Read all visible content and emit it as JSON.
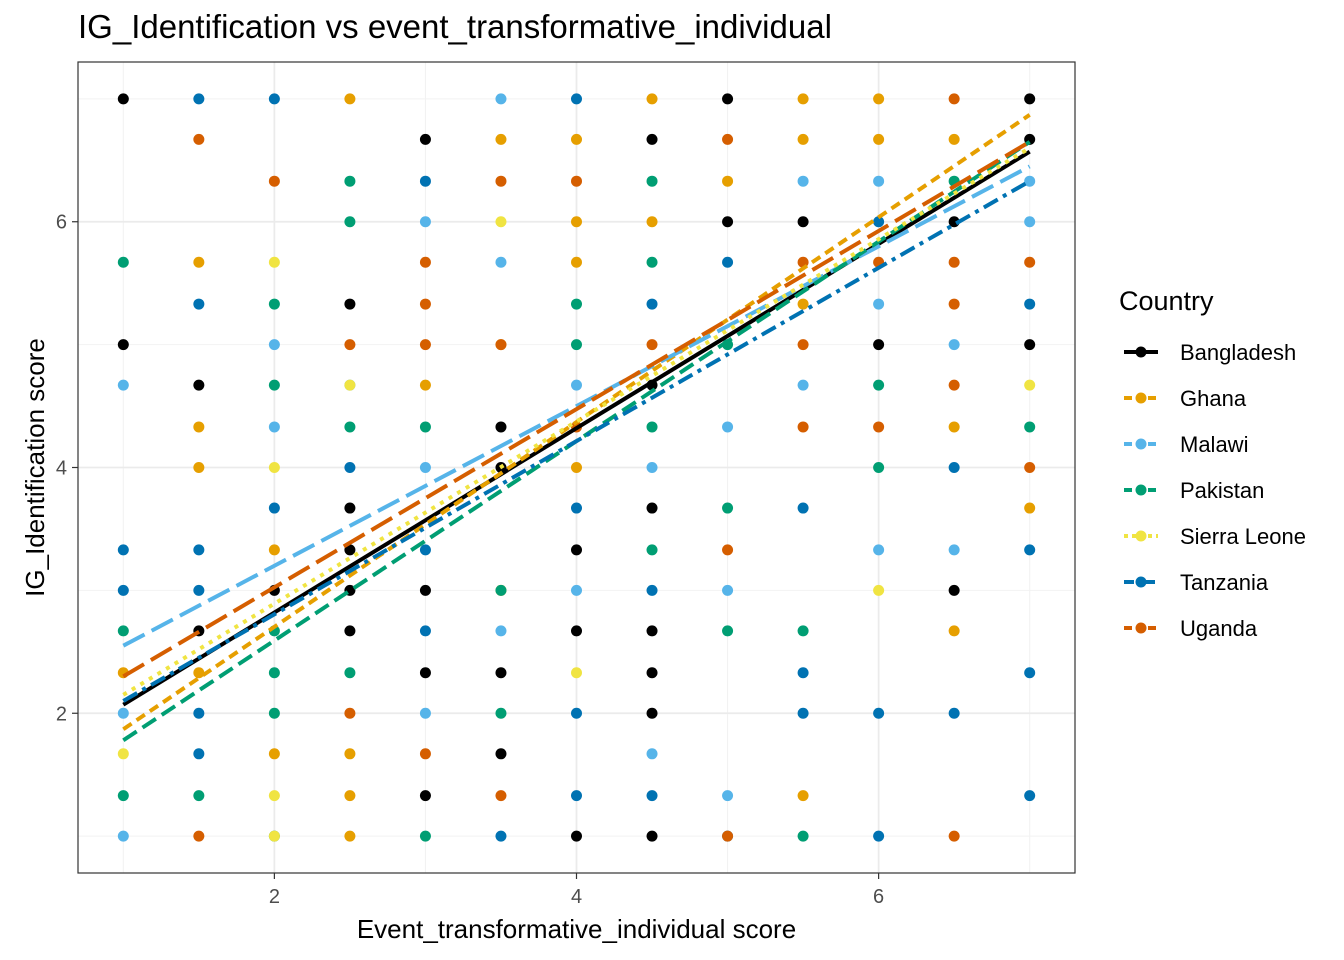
{
  "chart_data": {
    "type": "scatter",
    "title": "IG_Identification vs event_transformative_individual",
    "xlabel": "Event_transformative_individual score",
    "ylabel": "IG_Identification score",
    "xlim": [
      0.7,
      7.3
    ],
    "ylim": [
      0.7,
      7.3
    ],
    "x_ticks": [
      2,
      4,
      6
    ],
    "y_ticks": [
      2,
      4,
      6
    ],
    "grid": true,
    "legend": {
      "title": "Country",
      "placement": "right"
    },
    "series": [
      {
        "name": "Bangladesh",
        "color": "#000000",
        "line_style": "solid",
        "fit": {
          "x": [
            1,
            7
          ],
          "y": [
            2.07,
            6.57
          ]
        },
        "points": [
          [
            1,
            7
          ],
          [
            1,
            5
          ],
          [
            1.5,
            4.67
          ],
          [
            1.5,
            2.67
          ],
          [
            2,
            3
          ],
          [
            2.5,
            5.33
          ],
          [
            2.5,
            3.67
          ],
          [
            2.5,
            3.33
          ],
          [
            2.5,
            3
          ],
          [
            2.5,
            2.67
          ],
          [
            3,
            6.67
          ],
          [
            3,
            3
          ],
          [
            3,
            2.33
          ],
          [
            3,
            1.33
          ],
          [
            3.5,
            4.33
          ],
          [
            3.5,
            4
          ],
          [
            3.5,
            2.33
          ],
          [
            3.5,
            1.67
          ],
          [
            4,
            3.33
          ],
          [
            4,
            2.67
          ],
          [
            4,
            1
          ],
          [
            4.5,
            6.67
          ],
          [
            4.5,
            4.67
          ],
          [
            4.5,
            3.67
          ],
          [
            4.5,
            2.67
          ],
          [
            4.5,
            2.33
          ],
          [
            4.5,
            2
          ],
          [
            4.5,
            1
          ],
          [
            5,
            7
          ],
          [
            5,
            6
          ],
          [
            5.5,
            6
          ],
          [
            6,
            5
          ],
          [
            6.5,
            6
          ],
          [
            6.5,
            3
          ],
          [
            7,
            7
          ],
          [
            7,
            6.67
          ],
          [
            7,
            5
          ]
        ]
      },
      {
        "name": "Ghana",
        "color": "#E69F00",
        "line_style": "dashed-short",
        "fit": {
          "x": [
            1,
            7
          ],
          "y": [
            1.87,
            6.87
          ]
        },
        "points": [
          [
            1,
            2.33
          ],
          [
            1.5,
            5.67
          ],
          [
            1.5,
            4.33
          ],
          [
            1.5,
            4
          ],
          [
            1.5,
            2.33
          ],
          [
            2,
            3.33
          ],
          [
            2,
            1.67
          ],
          [
            2.5,
            7
          ],
          [
            2.5,
            1.67
          ],
          [
            2.5,
            1.33
          ],
          [
            2.5,
            1
          ],
          [
            3,
            4.67
          ],
          [
            3.5,
            6.67
          ],
          [
            3.5,
            5
          ],
          [
            3.5,
            3
          ],
          [
            4,
            6.67
          ],
          [
            4,
            6
          ],
          [
            4,
            5.67
          ],
          [
            4,
            4
          ],
          [
            4.5,
            7
          ],
          [
            4.5,
            6
          ],
          [
            5,
            6.33
          ],
          [
            5.5,
            7
          ],
          [
            5.5,
            6.67
          ],
          [
            5.5,
            5.33
          ],
          [
            5.5,
            1.33
          ],
          [
            6,
            7
          ],
          [
            6,
            6.67
          ],
          [
            6.5,
            6.67
          ],
          [
            6.5,
            4.33
          ],
          [
            6.5,
            2.67
          ],
          [
            7,
            3.67
          ]
        ]
      },
      {
        "name": "Malawi",
        "color": "#56B4E9",
        "line_style": "dashed-long",
        "fit": {
          "x": [
            1,
            7
          ],
          "y": [
            2.55,
            6.45
          ]
        },
        "points": [
          [
            1,
            4.67
          ],
          [
            1,
            2
          ],
          [
            1,
            1
          ],
          [
            2,
            5
          ],
          [
            2,
            4.33
          ],
          [
            2.5,
            4.67
          ],
          [
            3,
            6
          ],
          [
            3,
            4
          ],
          [
            3,
            2
          ],
          [
            3.5,
            7
          ],
          [
            3.5,
            5.67
          ],
          [
            3.5,
            2.67
          ],
          [
            4,
            4.67
          ],
          [
            4,
            3
          ],
          [
            4.5,
            4
          ],
          [
            4.5,
            1.67
          ],
          [
            5,
            4.33
          ],
          [
            5,
            3
          ],
          [
            5,
            1.33
          ],
          [
            5.5,
            6.33
          ],
          [
            5.5,
            4.67
          ],
          [
            6,
            6.33
          ],
          [
            6,
            5.33
          ],
          [
            6,
            3.33
          ],
          [
            6.5,
            5
          ],
          [
            6.5,
            3.33
          ],
          [
            7,
            6.33
          ],
          [
            7,
            6
          ]
        ]
      },
      {
        "name": "Pakistan",
        "color": "#009E73",
        "line_style": "dashed",
        "fit": {
          "x": [
            1,
            7
          ],
          "y": [
            1.78,
            6.65
          ]
        },
        "points": [
          [
            1,
            5.67
          ],
          [
            1,
            2.67
          ],
          [
            1,
            1.33
          ],
          [
            1.5,
            1.33
          ],
          [
            2,
            5.33
          ],
          [
            2,
            4.67
          ],
          [
            2,
            2.67
          ],
          [
            2,
            2.33
          ],
          [
            2,
            2
          ],
          [
            2,
            1
          ],
          [
            2.5,
            6.33
          ],
          [
            2.5,
            6
          ],
          [
            2.5,
            4.33
          ],
          [
            2.5,
            2.33
          ],
          [
            3,
            4.33
          ],
          [
            3,
            1
          ],
          [
            3.5,
            3
          ],
          [
            3.5,
            2
          ],
          [
            4,
            5.33
          ],
          [
            4,
            5
          ],
          [
            4.5,
            6.33
          ],
          [
            4.5,
            5.67
          ],
          [
            4.5,
            4.33
          ],
          [
            4.5,
            3.33
          ],
          [
            5,
            3.67
          ],
          [
            5,
            2.67
          ],
          [
            5,
            5
          ],
          [
            5.5,
            2.67
          ],
          [
            5.5,
            1
          ],
          [
            6,
            4.67
          ],
          [
            6,
            4
          ],
          [
            6.5,
            6.33
          ],
          [
            7,
            4.33
          ]
        ]
      },
      {
        "name": "Sierra Leone",
        "color": "#F0E442",
        "line_style": "dotted",
        "fit": {
          "x": [
            1,
            7
          ],
          "y": [
            2.15,
            6.6
          ]
        },
        "points": [
          [
            1,
            1.67
          ],
          [
            2,
            5.67
          ],
          [
            2,
            4
          ],
          [
            2,
            1.33
          ],
          [
            2,
            1
          ],
          [
            2.5,
            4.67
          ],
          [
            3.5,
            6
          ],
          [
            4,
            2.33
          ],
          [
            6,
            3
          ],
          [
            7,
            4.67
          ]
        ]
      },
      {
        "name": "Tanzania",
        "color": "#0072B2",
        "line_style": "dashdot",
        "fit": {
          "x": [
            1,
            7
          ],
          "y": [
            2.1,
            6.33
          ]
        },
        "points": [
          [
            1,
            3.33
          ],
          [
            1,
            3
          ],
          [
            1.5,
            7
          ],
          [
            1.5,
            5.33
          ],
          [
            1.5,
            3.33
          ],
          [
            1.5,
            3
          ],
          [
            1.5,
            2
          ],
          [
            1.5,
            1.67
          ],
          [
            2,
            7
          ],
          [
            2,
            3.67
          ],
          [
            2.5,
            4
          ],
          [
            3,
            6.33
          ],
          [
            3,
            3.33
          ],
          [
            3,
            2.67
          ],
          [
            3.5,
            1
          ],
          [
            4,
            7
          ],
          [
            4,
            3.67
          ],
          [
            4,
            2
          ],
          [
            4,
            1.33
          ],
          [
            4.5,
            5.33
          ],
          [
            4.5,
            3
          ],
          [
            4.5,
            1.33
          ],
          [
            5,
            5.67
          ],
          [
            5,
            1
          ],
          [
            5.5,
            3.67
          ],
          [
            5.5,
            2.33
          ],
          [
            5.5,
            2
          ],
          [
            6,
            6
          ],
          [
            6,
            2
          ],
          [
            6,
            1
          ],
          [
            6.5,
            4
          ],
          [
            6.5,
            2
          ],
          [
            7,
            5.33
          ],
          [
            7,
            3.33
          ],
          [
            7,
            2.33
          ],
          [
            7,
            1.33
          ]
        ]
      },
      {
        "name": "Uganda",
        "color": "#D55E00",
        "line_style": "dashed-long",
        "fit": {
          "x": [
            1,
            7
          ],
          "y": [
            2.3,
            6.65
          ]
        },
        "points": [
          [
            1.5,
            6.67
          ],
          [
            1.5,
            1
          ],
          [
            2,
            6.33
          ],
          [
            2.5,
            5
          ],
          [
            2.5,
            2
          ],
          [
            3,
            5.67
          ],
          [
            3,
            5.33
          ],
          [
            3,
            5
          ],
          [
            3,
            1.67
          ],
          [
            3.5,
            6.33
          ],
          [
            3.5,
            5
          ],
          [
            3.5,
            1.33
          ],
          [
            4,
            6.33
          ],
          [
            4,
            4.33
          ],
          [
            4.5,
            5
          ],
          [
            5,
            6.67
          ],
          [
            5,
            3.33
          ],
          [
            5,
            1
          ],
          [
            5.5,
            5.67
          ],
          [
            5.5,
            5
          ],
          [
            5.5,
            4.33
          ],
          [
            6,
            5.67
          ],
          [
            6,
            4.33
          ],
          [
            6.5,
            7
          ],
          [
            6.5,
            5.67
          ],
          [
            6.5,
            5.33
          ],
          [
            6.5,
            4.67
          ],
          [
            6.5,
            1
          ],
          [
            7,
            5.67
          ],
          [
            7,
            4
          ]
        ]
      }
    ]
  }
}
